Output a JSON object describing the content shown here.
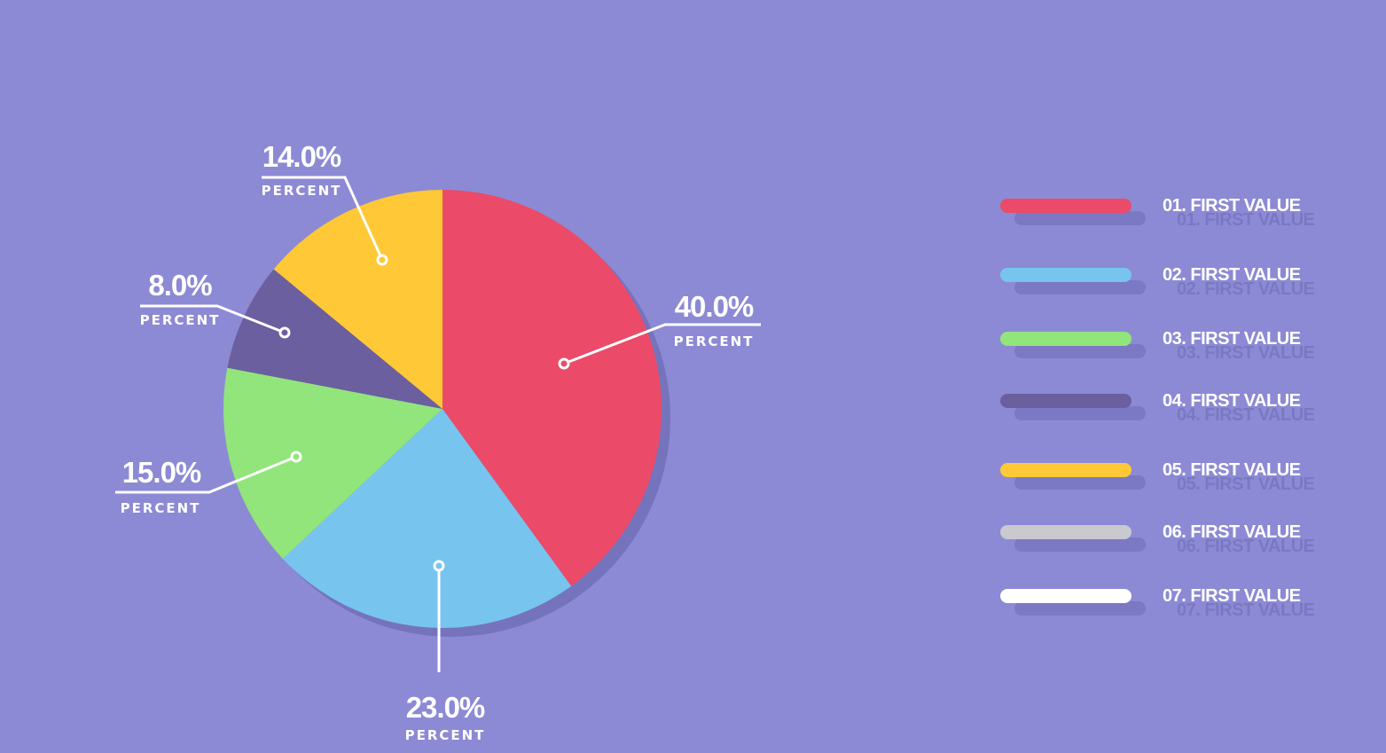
{
  "chart_data": {
    "type": "pie",
    "slices": [
      {
        "label_value": "40.0%",
        "label_sub": "PERCENT",
        "value": 40.0,
        "color": "#EB4A68"
      },
      {
        "label_value": "23.0%",
        "label_sub": "PERCENT",
        "value": 23.0,
        "color": "#77C5EF"
      },
      {
        "label_value": "15.0%",
        "label_sub": "PERCENT",
        "value": 15.0,
        "color": "#92E57A"
      },
      {
        "label_value": "8.0%",
        "label_sub": "PERCENT",
        "value": 8.0,
        "color": "#6C5FA0"
      },
      {
        "label_value": "14.0%",
        "label_sub": "PERCENT",
        "value": 14.0,
        "color": "#FFC837"
      }
    ],
    "legend": [
      {
        "label": "01. FIRST VALUE",
        "color": "#EB4A68"
      },
      {
        "label": "02. FIRST VALUE",
        "color": "#77C5EF"
      },
      {
        "label": "03. FIRST VALUE",
        "color": "#92E57A"
      },
      {
        "label": "04. FIRST VALUE",
        "color": "#6C5FA0"
      },
      {
        "label": "05. FIRST VALUE",
        "color": "#FFC837"
      },
      {
        "label": "06. FIRST VALUE",
        "color": "#C9C9CF"
      },
      {
        "label": "07. FIRST VALUE",
        "color": "#FFFFFF"
      }
    ],
    "legend_placement": "right"
  }
}
